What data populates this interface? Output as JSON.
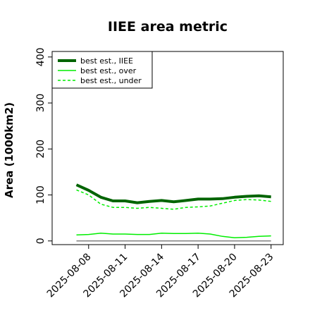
{
  "chart_data": {
    "type": "line",
    "title": "IIEE area metric",
    "xlabel": "",
    "ylabel": "Area (1000km2)",
    "ylim": [
      -8,
      412
    ],
    "xlim": [
      "2025-08-05",
      "2025-08-24"
    ],
    "x": [
      "2025-08-07",
      "2025-08-08",
      "2025-08-09",
      "2025-08-10",
      "2025-08-11",
      "2025-08-12",
      "2025-08-13",
      "2025-08-14",
      "2025-08-15",
      "2025-08-16",
      "2025-08-17",
      "2025-08-18",
      "2025-08-19",
      "2025-08-20",
      "2025-08-21",
      "2025-08-22",
      "2025-08-23"
    ],
    "x_tick_labels": [
      "2025-08-08",
      "2025-08-11",
      "2025-08-14",
      "2025-08-17",
      "2025-08-20",
      "2025-08-23"
    ],
    "y_ticks": [
      0,
      100,
      200,
      300,
      400
    ],
    "grid": false,
    "legend_position": "top-left",
    "series": [
      {
        "name": "best est., IIEE",
        "color": "#006400",
        "style": "solid",
        "width": "thick",
        "values": [
          122,
          110,
          95,
          87,
          87,
          83,
          86,
          88,
          85,
          88,
          91,
          91,
          92,
          95,
          97,
          98,
          96
        ]
      },
      {
        "name": "best est., over",
        "color": "#00ee00",
        "style": "solid",
        "width": "thin",
        "values": [
          13,
          14,
          17,
          15,
          15,
          14,
          14,
          17,
          16,
          16,
          17,
          15,
          10,
          7,
          8,
          10,
          11
        ]
      },
      {
        "name": "best est., under",
        "color": "#00ee00",
        "style": "dashed",
        "width": "thin",
        "values": [
          111,
          100,
          80,
          73,
          73,
          71,
          73,
          71,
          69,
          73,
          74,
          76,
          82,
          88,
          90,
          89,
          86
        ]
      },
      {
        "name": "",
        "color": "#808080",
        "style": "solid",
        "width": "thin",
        "values": [
          0,
          0,
          0,
          0,
          0,
          0,
          0,
          0,
          0,
          0,
          0,
          0,
          0,
          0,
          0,
          0,
          0
        ]
      }
    ]
  }
}
